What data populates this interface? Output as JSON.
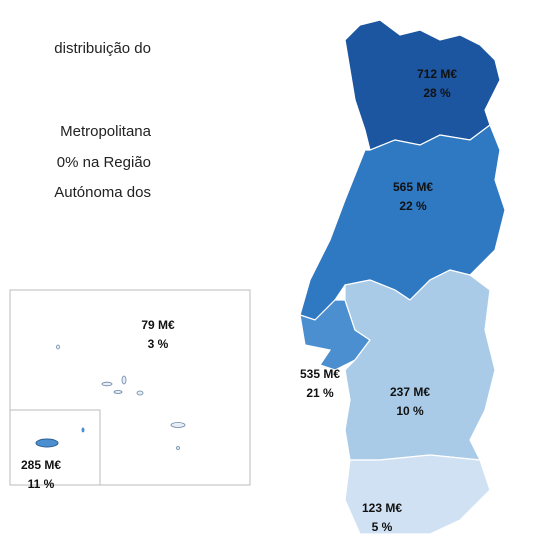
{
  "text_lines": [
    "distribuição do",
    "Metropolitana",
    "0% na Região",
    "Autónoma dos"
  ],
  "regions": [
    {
      "amount": "712 M€",
      "share": "28 %",
      "color": "#1c56a0"
    },
    {
      "amount": "565 M€",
      "share": "22 %",
      "color": "#2f78c2"
    },
    {
      "amount": "535 M€",
      "share": "21 %",
      "color": "#4b8fd0"
    },
    {
      "amount": "237 M€",
      "share": "10 %",
      "color": "#a9cbe7"
    },
    {
      "amount": "123 M€",
      "share": "5 %",
      "color": "#d0e1f4"
    },
    {
      "amount": "79 M€",
      "share": "3 %",
      "color": "#e8eef5"
    },
    {
      "amount": "285 M€",
      "share": "11 %",
      "color": "#4b8fd0"
    }
  ]
}
